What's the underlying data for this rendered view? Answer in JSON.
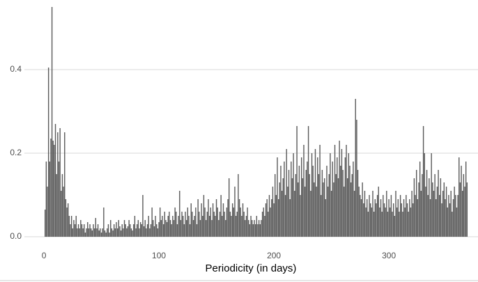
{
  "chart_data": {
    "type": "bar",
    "xlabel": "Periodicity (in days)",
    "color": "#595959",
    "grid": true,
    "xlim": [
      -17,
      377.5
    ],
    "ylim": [
      -0.0283,
      0.55
    ],
    "xticks": [
      0,
      100,
      200,
      300
    ],
    "yticks": [
      {
        "value": 0,
        "label": "0.0"
      },
      0.2,
      0.4
    ],
    "x": [
      1,
      2,
      3,
      4,
      5,
      6,
      7,
      8,
      9,
      10,
      11,
      12,
      13,
      14,
      15,
      16,
      17,
      18,
      19,
      20,
      21,
      22,
      23,
      24,
      25,
      26,
      27,
      28,
      29,
      30,
      31,
      32,
      33,
      34,
      35,
      36,
      37,
      38,
      39,
      40,
      41,
      42,
      43,
      44,
      45,
      46,
      47,
      48,
      49,
      50,
      51,
      52,
      53,
      54,
      55,
      56,
      57,
      58,
      59,
      60,
      61,
      62,
      63,
      64,
      65,
      66,
      67,
      68,
      69,
      70,
      71,
      72,
      73,
      74,
      75,
      76,
      77,
      78,
      79,
      80,
      81,
      82,
      83,
      84,
      85,
      86,
      87,
      88,
      89,
      90,
      91,
      92,
      93,
      94,
      95,
      96,
      97,
      98,
      99,
      100,
      101,
      102,
      103,
      104,
      105,
      106,
      107,
      108,
      109,
      110,
      111,
      112,
      113,
      114,
      115,
      116,
      117,
      118,
      119,
      120,
      121,
      122,
      123,
      124,
      125,
      126,
      127,
      128,
      129,
      130,
      131,
      132,
      133,
      134,
      135,
      136,
      137,
      138,
      139,
      140,
      141,
      142,
      143,
      144,
      145,
      146,
      147,
      148,
      149,
      150,
      151,
      152,
      153,
      154,
      155,
      156,
      157,
      158,
      159,
      160,
      161,
      162,
      163,
      164,
      165,
      166,
      167,
      168,
      169,
      170,
      171,
      172,
      173,
      174,
      175,
      176,
      177,
      178,
      179,
      180,
      181,
      182,
      183,
      184,
      185,
      186,
      187,
      188,
      189,
      190,
      191,
      192,
      193,
      194,
      195,
      196,
      197,
      198,
      199,
      200,
      201,
      202,
      203,
      204,
      205,
      206,
      207,
      208,
      209,
      210,
      211,
      212,
      213,
      214,
      215,
      216,
      217,
      218,
      219,
      220,
      221,
      222,
      223,
      224,
      225,
      226,
      227,
      228,
      229,
      230,
      231,
      232,
      233,
      234,
      235,
      236,
      237,
      238,
      239,
      240,
      241,
      242,
      243,
      244,
      245,
      246,
      247,
      248,
      249,
      250,
      251,
      252,
      253,
      254,
      255,
      256,
      257,
      258,
      259,
      260,
      261,
      262,
      263,
      264,
      265,
      266,
      267,
      268,
      269,
      270,
      271,
      272,
      273,
      274,
      275,
      276,
      277,
      278,
      279,
      280,
      281,
      282,
      283,
      284,
      285,
      286,
      287,
      288,
      289,
      290,
      291,
      292,
      293,
      294,
      295,
      296,
      297,
      298,
      299,
      300,
      301,
      302,
      303,
      304,
      305,
      306,
      307,
      308,
      309,
      310,
      311,
      312,
      313,
      314,
      315,
      316,
      317,
      318,
      319,
      320,
      321,
      322,
      323,
      324,
      325,
      326,
      327,
      328,
      329,
      330,
      331,
      332,
      333,
      334,
      335,
      336,
      337,
      338,
      339,
      340,
      341,
      342,
      343,
      344,
      345,
      346,
      347,
      348,
      349,
      350,
      351,
      352,
      353,
      354,
      355,
      356,
      357,
      358,
      359,
      360,
      361,
      362,
      363,
      364,
      365,
      366,
      367,
      368
    ],
    "values": [
      0.065,
      0.18,
      0.12,
      0.405,
      0.18,
      0.235,
      0.55,
      0.23,
      0.22,
      0.27,
      0.15,
      0.25,
      0.18,
      0.26,
      0.11,
      0.15,
      0.12,
      0.25,
      0.09,
      0.07,
      0.08,
      0.05,
      0.03,
      0.05,
      0.02,
      0.04,
      0.03,
      0.05,
      0.02,
      0.03,
      0.02,
      0.04,
      0.03,
      0.02,
      0.03,
      0.01,
      0.02,
      0.035,
      0.02,
      0.03,
      0.02,
      0.015,
      0.03,
      0.02,
      0.045,
      0.02,
      0.03,
      0.015,
      0.02,
      0.01,
      0.02,
      0.07,
      0.015,
      0.01,
      0.02,
      0.03,
      0.01,
      0.04,
      0.02,
      0.015,
      0.03,
      0.02,
      0.035,
      0.02,
      0.04,
      0.025,
      0.015,
      0.03,
      0.02,
      0.04,
      0.03,
      0.02,
      0.025,
      0.04,
      0.03,
      0.02,
      0.015,
      0.03,
      0.05,
      0.02,
      0.03,
      0.04,
      0.02,
      0.035,
      0.03,
      0.1,
      0.025,
      0.04,
      0.02,
      0.03,
      0.05,
      0.02,
      0.03,
      0.07,
      0.04,
      0.025,
      0.05,
      0.03,
      0.02,
      0.035,
      0.07,
      0.04,
      0.05,
      0.03,
      0.06,
      0.04,
      0.035,
      0.05,
      0.06,
      0.04,
      0.03,
      0.05,
      0.04,
      0.07,
      0.06,
      0.03,
      0.05,
      0.11,
      0.04,
      0.06,
      0.05,
      0.03,
      0.06,
      0.04,
      0.07,
      0.05,
      0.03,
      0.08,
      0.06,
      0.04,
      0.05,
      0.07,
      0.03,
      0.09,
      0.06,
      0.04,
      0.08,
      0.05,
      0.1,
      0.07,
      0.04,
      0.06,
      0.09,
      0.05,
      0.07,
      0.04,
      0.08,
      0.06,
      0.05,
      0.09,
      0.07,
      0.04,
      0.06,
      0.1,
      0.05,
      0.08,
      0.06,
      0.04,
      0.07,
      0.09,
      0.14,
      0.06,
      0.05,
      0.08,
      0.07,
      0.12,
      0.05,
      0.06,
      0.15,
      0.09,
      0.07,
      0.05,
      0.08,
      0.06,
      0.04,
      0.05,
      0.07,
      0.04,
      0.03,
      0.05,
      0.04,
      0.03,
      0.04,
      0.03,
      0.05,
      0.03,
      0.04,
      0.03,
      0.04,
      0.06,
      0.07,
      0.05,
      0.08,
      0.09,
      0.06,
      0.1,
      0.07,
      0.09,
      0.12,
      0.08,
      0.15,
      0.1,
      0.19,
      0.09,
      0.13,
      0.17,
      0.11,
      0.14,
      0.18,
      0.1,
      0.21,
      0.12,
      0.16,
      0.09,
      0.18,
      0.14,
      0.2,
      0.11,
      0.15,
      0.265,
      0.13,
      0.17,
      0.1,
      0.19,
      0.14,
      0.22,
      0.12,
      0.16,
      0.18,
      0.265,
      0.15,
      0.11,
      0.2,
      0.17,
      0.13,
      0.21,
      0.12,
      0.19,
      0.15,
      0.22,
      0.1,
      0.16,
      0.13,
      0.14,
      0.09,
      0.17,
      0.12,
      0.15,
      0.2,
      0.11,
      0.18,
      0.13,
      0.22,
      0.15,
      0.19,
      0.14,
      0.23,
      0.17,
      0.21,
      0.16,
      0.12,
      0.19,
      0.22,
      0.14,
      0.2,
      0.17,
      0.13,
      0.15,
      0.18,
      0.11,
      0.33,
      0.28,
      0.16,
      0.12,
      0.1,
      0.09,
      0.13,
      0.08,
      0.11,
      0.07,
      0.09,
      0.06,
      0.1,
      0.08,
      0.07,
      0.11,
      0.06,
      0.09,
      0.08,
      0.1,
      0.12,
      0.07,
      0.09,
      0.06,
      0.1,
      0.08,
      0.07,
      0.11,
      0.06,
      0.09,
      0.07,
      0.1,
      0.06,
      0.08,
      0.05,
      0.11,
      0.07,
      0.09,
      0.06,
      0.1,
      0.08,
      0.06,
      0.09,
      0.07,
      0.1,
      0.08,
      0.06,
      0.09,
      0.07,
      0.11,
      0.08,
      0.14,
      0.1,
      0.16,
      0.09,
      0.13,
      0.18,
      0.11,
      0.15,
      0.265,
      0.2,
      0.12,
      0.16,
      0.1,
      0.14,
      0.09,
      0.2,
      0.13,
      0.11,
      0.15,
      0.09,
      0.12,
      0.16,
      0.1,
      0.14,
      0.08,
      0.11,
      0.13,
      0.09,
      0.12,
      0.07,
      0.1,
      0.08,
      0.11,
      0.06,
      0.09,
      0.12,
      0.1,
      0.07,
      0.1,
      0.19,
      0.13,
      0.17,
      0.11,
      0.15,
      0.12,
      0.18,
      0.13
    ]
  }
}
